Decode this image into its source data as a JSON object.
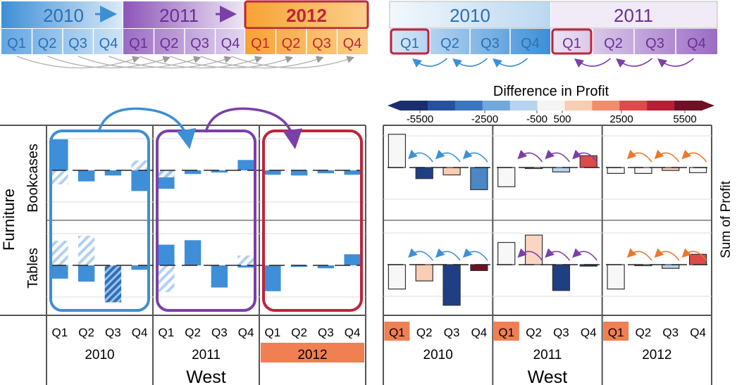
{
  "colors": {
    "blue": "#3d8fd6",
    "blue_light": "#cfe3f6",
    "purple": "#7b3fa8",
    "purple_light": "#e3d6ef",
    "orange": "#f7a234",
    "orange_light": "#fbd08c",
    "red": "#c0243a",
    "salmon": "#f07f52",
    "bar_blue": "#3f8fd8"
  },
  "timeline_left": {
    "years": [
      "2010",
      "2011",
      "2012"
    ],
    "quarters": [
      "Q1",
      "Q2",
      "Q3",
      "Q4"
    ],
    "highlight_year": "2012"
  },
  "timeline_right": {
    "years": [
      "2010",
      "2011"
    ],
    "quarters": [
      "Q1",
      "Q2",
      "Q3",
      "Q4"
    ]
  },
  "legend": {
    "title": "Difference in Profit",
    "ticks": [
      "-5500",
      "-2500",
      "-500",
      "500",
      "2500",
      "5500"
    ],
    "colors": [
      "#1c2f6b",
      "#27519c",
      "#3b76be",
      "#72a8da",
      "#b6d4ef",
      "#f4f4f4",
      "#f7cdb3",
      "#ef8d6c",
      "#dc4a4a",
      "#b71f34",
      "#6f1024"
    ]
  },
  "left_chart": {
    "category": "Furniture",
    "rows": [
      "Bookcases",
      "Tables"
    ],
    "years": [
      "2010",
      "2011",
      "2012"
    ],
    "quarters": [
      "Q1",
      "Q2",
      "Q3",
      "Q4"
    ],
    "region": "West"
  },
  "right_chart": {
    "rows": [
      "Bookcases",
      "Tables"
    ],
    "years": [
      "2010",
      "2011",
      "2012"
    ],
    "quarters": [
      "Q1",
      "Q2",
      "Q3",
      "Q4"
    ],
    "region": "West",
    "measure": "Sum of Profit"
  },
  "chart_data": [
    {
      "type": "bar",
      "title": "",
      "facets": [
        "Bookcases",
        "Tables"
      ],
      "categories": [
        "2010 Q1",
        "2010 Q2",
        "2010 Q3",
        "2010 Q4",
        "2011 Q1",
        "2011 Q2",
        "2011 Q3",
        "2011 Q4",
        "2012 Q1",
        "2012 Q2",
        "2012 Q3",
        "2012 Q4"
      ],
      "series": [
        {
          "values": [
            0.42,
            -0.15,
            -0.07,
            -0.28,
            -0.25,
            -0.05,
            -0.03,
            0.14,
            -0.06,
            -0.07,
            -0.04,
            -0.06
          ]
        },
        {
          "values": [
            -0.18,
            -0.22,
            -0.5,
            -0.06,
            0.28,
            0.34,
            -0.3,
            -0.03,
            -0.35,
            -0.02,
            -0.04,
            0.15
          ]
        }
      ]
    },
    {
      "type": "bar",
      "facets": [
        "Bookcases",
        "Tables"
      ],
      "categories": [
        "2010 Q1",
        "2010 Q2",
        "2010 Q3",
        "2010 Q4",
        "2011 Q1",
        "2011 Q2",
        "2011 Q3",
        "2011 Q4",
        "2012 Q1",
        "2012 Q2",
        "2012 Q3",
        "2012 Q4"
      ],
      "series": [
        {
          "values": [
            0.45,
            -0.15,
            -0.1,
            -0.3,
            -0.26,
            -0.01,
            -0.06,
            0.16,
            -0.08,
            -0.08,
            -0.04,
            -0.07
          ],
          "colors": [
            "#f7f7f7",
            "#1f3f82",
            "#f7cdb3",
            "#4b86c6",
            "#f7f7f7",
            "#f7f7f7",
            "#b6d4ef",
            "#dc4a4a",
            "#f7f7f7",
            "#f7f7f7",
            "#f7cdb3",
            "#f7f7f7"
          ]
        },
        {
          "values": [
            -0.33,
            -0.22,
            -0.55,
            -0.08,
            0.3,
            0.4,
            -0.35,
            -0.02,
            -0.33,
            -0.01,
            -0.05,
            0.14
          ],
          "colors": [
            "#f7f7f7",
            "#f7cdb3",
            "#1f3f82",
            "#6f1024",
            "#f7f7f7",
            "#fad5c2",
            "#1f3f82",
            "#1c2f6b",
            "#f7f7f7",
            "#f7f7f7",
            "#b6d4ef",
            "#dc4a4a"
          ]
        }
      ]
    }
  ]
}
